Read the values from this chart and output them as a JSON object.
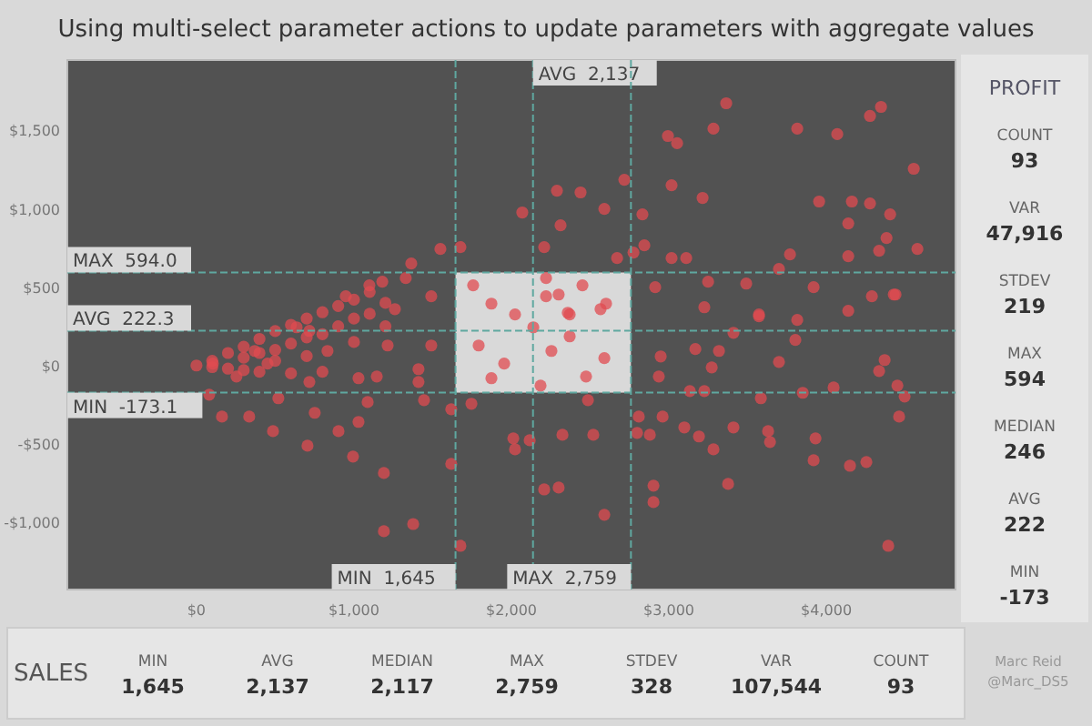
{
  "chart_data": [
    {
      "type": "scatter",
      "title": "Using multi-select parameter actions to update parameters with aggregate values",
      "color": "#e04b50",
      "marker": "circle",
      "grid": false,
      "xlim": [
        -820,
        4820
      ],
      "ylim": [
        -1430,
        1950
      ],
      "xticks": [
        {
          "value": 0,
          "label": "$0"
        },
        {
          "value": 1000,
          "label": "$1,000"
        },
        {
          "value": 2000,
          "label": "$2,000"
        },
        {
          "value": 3000,
          "label": "$3,000"
        },
        {
          "value": 4000,
          "label": "$4,000"
        }
      ],
      "yticks": [
        {
          "value": -1000,
          "label": "-$1,000"
        },
        {
          "value": -500,
          "label": "-$500"
        },
        {
          "value": 0,
          "label": "$0"
        },
        {
          "value": 500,
          "label": "$500"
        },
        {
          "value": 1000,
          "label": "$1,000"
        },
        {
          "value": 1500,
          "label": "$1,500"
        }
      ],
      "ref_lines": [
        {
          "axis": "x",
          "value": 1645,
          "label": "MIN  1,645",
          "color": "#5fa8a0",
          "line_style": "dashed"
        },
        {
          "axis": "x",
          "value": 2137,
          "label": "AVG  2,137",
          "color": "#5fa8a0",
          "line_style": "dashed"
        },
        {
          "axis": "x",
          "value": 2759,
          "label": "MAX  2,759",
          "color": "#5fa8a0",
          "line_style": "dashed"
        },
        {
          "axis": "y",
          "value": 594,
          "label": "MAX  594.0",
          "color": "#5fa8a0",
          "line_style": "dashed"
        },
        {
          "axis": "y",
          "value": 222.3,
          "label": "AVG  222.3",
          "color": "#5fa8a0",
          "line_style": "dashed"
        },
        {
          "axis": "y",
          "value": -173.1,
          "label": "MIN  -173.1",
          "color": "#5fa8a0",
          "line_style": "dashed"
        }
      ],
      "bands": [
        {
          "axis": "x",
          "from": 1645,
          "to": 2759,
          "color": "#d9d9d9"
        }
      ],
      "x": [
        0,
        81,
        104,
        162,
        254,
        335,
        370,
        451,
        486,
        520,
        636,
        705,
        717,
        717,
        751,
        832,
        902,
        948,
        994,
        1029,
        1029,
        1087,
        1098,
        1145,
        1180,
        1190,
        1190,
        1214,
        1260,
        1329,
        1364,
        1376,
        1410,
        1410,
        1445,
        1491,
        1491,
        1549,
        1618,
        1618,
        1676,
        1676,
        1746,
        1757,
        1792,
        1873,
        1873,
        1954,
        2012,
        2023,
        2023,
        2069,
        2116,
        2139,
        2185,
        2208,
        2208,
        2220,
        2220,
        2254,
        2289,
        2300,
        2300,
        2312,
        2324,
        2358,
        2370,
        2370,
        2439,
        2451,
        2474,
        2486,
        2520,
        2566,
        2590,
        2590,
        2590,
        2601,
        2671,
        2717,
        2775,
        2798,
        2809,
        2832,
        2844,
        2879,
        2902,
        2902,
        2913,
        2936,
        2948,
        2960,
        2994,
        3017,
        3017,
        3052,
        3098,
        3110,
        3133,
        3168,
        3191,
        3214,
        3225,
        3225,
        3249,
        3272,
        3283,
        3283,
        3318,
        3364,
        3376,
        3410,
        3410,
        3491,
        3572,
        3572,
        3584,
        3630,
        3642,
        3699,
        3699,
        3769,
        3803,
        3815,
        3815,
        3850,
        3919,
        3919,
        3931,
        3954,
        4046,
        4069,
        4139,
        4139,
        4139,
        4150,
        4162,
        4254,
        4277,
        4277,
        4289,
        4335,
        4335,
        4347,
        4370,
        4382,
        4393,
        4405,
        4428,
        4439,
        4451,
        4462,
        4497,
        4555,
        4578,
        100,
        100,
        200,
        200,
        300,
        300,
        300,
        400,
        400,
        400,
        500,
        500,
        500,
        600,
        600,
        600,
        700,
        700,
        700,
        800,
        800,
        800,
        900,
        900,
        1000,
        1000,
        1000,
        1100,
        1100,
        1200,
        1200
      ],
      "values": [
        0,
        -186,
        12,
        -326,
        -70,
        -326,
        93,
        12,
        -419,
        -209,
        244,
        -512,
        221,
        -105,
        -302,
        93,
        -419,
        442,
        -581,
        -360,
        -81,
        -233,
        512,
        -70,
        535,
        -1058,
        -686,
        128,
        360,
        558,
        651,
        -1012,
        -23,
        -105,
        -221,
        128,
        442,
        744,
        -628,
        -279,
        -1151,
        756,
        -244,
        512,
        128,
        395,
        -81,
        12,
        -465,
        326,
        -535,
        977,
        -477,
        244,
        -128,
        756,
        -791,
        558,
        442,
        93,
        1116,
        453,
        -779,
        895,
        -442,
        337,
        326,
        186,
        1105,
        512,
        -70,
        -221,
        -442,
        360,
        1000,
        47,
        -953,
        395,
        686,
        1186,
        721,
        -430,
        -326,
        965,
        767,
        -442,
        -767,
        -872,
        500,
        -70,
        58,
        -326,
        1465,
        1151,
        686,
        1419,
        -395,
        686,
        -163,
        105,
        -453,
        1070,
        372,
        -163,
        535,
        -12,
        1512,
        -535,
        93,
        1674,
        -756,
        209,
        -395,
        523,
        314,
        326,
        -209,
        -419,
        -488,
        616,
        23,
        709,
        163,
        291,
        1512,
        -174,
        500,
        -605,
        -465,
        1047,
        -140,
        1477,
        907,
        698,
        349,
        -640,
        1047,
        -616,
        1593,
        1035,
        442,
        -35,
        733,
        1651,
        35,
        814,
        -1151,
        965,
        453,
        453,
        -128,
        -326,
        -198,
        1256,
        744,
        30,
        -10,
        80,
        -20,
        120,
        50,
        -30,
        170,
        80,
        -40,
        220,
        100,
        30,
        260,
        140,
        -50,
        300,
        180,
        60,
        340,
        200,
        -40,
        380,
        250,
        420,
        300,
        150,
        470,
        330,
        400,
        250
      ]
    },
    {
      "type": "other",
      "title": "PROFIT",
      "categories": [
        "COUNT",
        "VAR",
        "STDEV",
        "MAX",
        "MEDIAN",
        "AVG",
        "MIN"
      ],
      "value_labels": [
        "93",
        "47,916",
        "219",
        "594",
        "246",
        "222",
        "-173"
      ]
    },
    {
      "type": "other",
      "title": "SALES",
      "categories": [
        "MIN",
        "AVG",
        "MEDIAN",
        "MAX",
        "STDEV",
        "VAR",
        "COUNT"
      ],
      "value_labels": [
        "1,645",
        "2,137",
        "2,117",
        "2,759",
        "328",
        "107,544",
        "93"
      ],
      "annotations": [
        "Marc Reid",
        "@Marc_DS5"
      ]
    }
  ]
}
